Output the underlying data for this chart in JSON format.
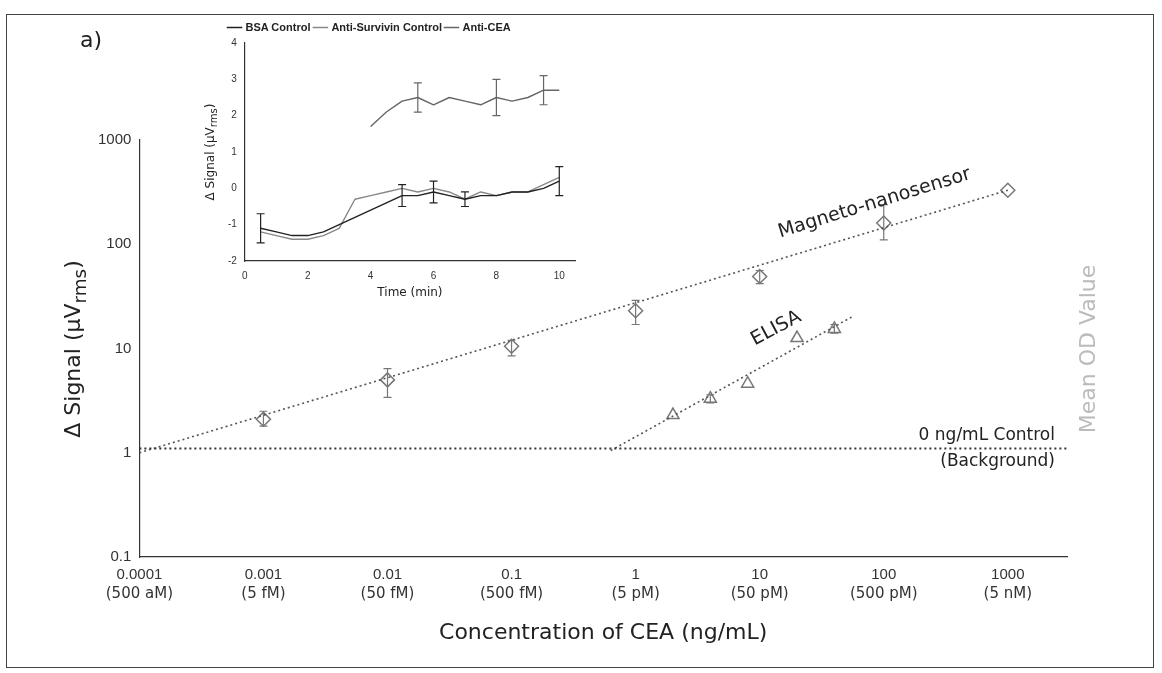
{
  "chart_data": [
    {
      "type": "scatter",
      "xlabel": "Concentration of CEA (ng/mL)",
      "ylabel": "Δ Signal (μV$_{rms}$)",
      "y2label": "Mean OD Value",
      "log": "xy",
      "xlim": [
        0.0001,
        3000
      ],
      "ylim": [
        0.1,
        1000
      ],
      "xticks": [
        0.0001,
        0.001,
        0.01,
        0.1,
        1,
        10,
        100,
        1000
      ],
      "yticks": [
        0.1,
        1,
        10,
        100,
        1000
      ],
      "series": [
        {
          "type": "line",
          "color": "#555555",
          "marker": "none",
          "line_style": "dotted",
          "x": [
            0.0001,
            1000
          ],
          "values": [
            1,
            330
          ]
        },
        {
          "type": "line",
          "color": "#555555",
          "marker": "none",
          "line_style": "dotted",
          "x": [
            0.63,
            55
          ],
          "values": [
            1.05,
            20
          ]
        },
        {
          "type": "scatter",
          "name": "Magneto-nanosensor",
          "color": "#777777",
          "marker": "diamond",
          "x": [
            0.001,
            0.01,
            0.1,
            1,
            10,
            100,
            1000
          ],
          "values": [
            2.1,
            5.0,
            10.5,
            23,
            49,
            160,
            330
          ],
          "errors": [
            [
              1.8,
              2.5
            ],
            [
              3.4,
              6.4
            ],
            [
              8.5,
              12
            ],
            [
              17,
              29
            ],
            [
              42,
              56
            ],
            [
              110,
              240
            ],
            null
          ]
        },
        {
          "type": "scatter",
          "name": "ELISA",
          "color": "#777777",
          "marker": "triangle",
          "x": [
            2,
            4,
            8,
            20,
            40
          ],
          "values": [
            2.3,
            3.3,
            4.6,
            12.6,
            15.4
          ],
          "errors": [
            null,
            [
              3.0,
              3.6
            ],
            null,
            null,
            [
              14,
              17
            ]
          ]
        }
      ],
      "ref_lines": [
        {
          "axis": "y",
          "value": 1.1,
          "label": "0 ng/mL Control (Background)",
          "color": "#333333",
          "line_style": "dotted"
        }
      ],
      "annotations": [
        "a)",
        "(500 aM)",
        "(5 fM)",
        "(50 fM)",
        "(500 fM)",
        "(5 pM)",
        "(50 pM)",
        "(500 pM)",
        "(5 nM)"
      ],
      "legend": false,
      "grid": false
    },
    {
      "type": "line",
      "xlabel": "Time (min)",
      "ylabel": "Δ Signal (μV$_{rms}$)",
      "xlim": [
        0,
        10.5
      ],
      "ylim": [
        -2,
        4
      ],
      "xticks": [
        0,
        2,
        4,
        6,
        8,
        10
      ],
      "yticks": [
        -2,
        -1,
        0,
        1,
        2,
        3,
        4
      ],
      "legend": "top left",
      "grid": false,
      "series": [
        {
          "name": "BSA Control",
          "color": "#222222",
          "x": [
            0.5,
            1,
            1.5,
            2,
            2.5,
            3,
            3.5,
            4,
            4.5,
            5,
            5.5,
            6,
            6.5,
            7,
            7.5,
            8,
            8.5,
            9,
            9.5,
            10
          ],
          "values": [
            -1.1,
            -1.2,
            -1.3,
            -1.3,
            -1.2,
            -1.0,
            -0.8,
            -0.6,
            -0.4,
            -0.2,
            -0.2,
            -0.1,
            -0.2,
            -0.3,
            -0.2,
            -0.2,
            -0.1,
            -0.1,
            0.0,
            0.2
          ],
          "errors": [
            [
              -1.5,
              -0.7
            ],
            null,
            null,
            null,
            null,
            null,
            null,
            null,
            null,
            [
              -0.5,
              0.1
            ],
            null,
            [
              -0.4,
              0.2
            ],
            null,
            [
              -0.5,
              -0.1
            ],
            null,
            null,
            null,
            null,
            null,
            [
              -0.2,
              0.6
            ]
          ]
        },
        {
          "name": "Anti-Survivin Control",
          "color": "#888888",
          "x": [
            0.5,
            1,
            1.5,
            2,
            2.5,
            3,
            3.5,
            4,
            4.5,
            5,
            5.5,
            6,
            6.5,
            7,
            7.5,
            8,
            8.5,
            9,
            9.5,
            10
          ],
          "values": [
            -1.2,
            -1.3,
            -1.4,
            -1.4,
            -1.3,
            -1.1,
            -0.3,
            -0.2,
            -0.1,
            0.0,
            -0.1,
            0.0,
            -0.1,
            -0.3,
            -0.1,
            -0.2,
            -0.1,
            -0.1,
            0.1,
            0.3
          ]
        },
        {
          "name": "Anti-CEA",
          "color": "#666666",
          "x": [
            4,
            4.5,
            5,
            5.5,
            6,
            6.5,
            7,
            7.5,
            8,
            8.5,
            9,
            9.5,
            10
          ],
          "values": [
            1.7,
            2.1,
            2.4,
            2.5,
            2.3,
            2.5,
            2.4,
            2.3,
            2.5,
            2.4,
            2.5,
            2.7,
            2.7
          ],
          "errors": [
            null,
            null,
            null,
            [
              2.1,
              2.9
            ],
            null,
            null,
            null,
            null,
            [
              2.0,
              3.0
            ],
            null,
            null,
            [
              2.3,
              3.1
            ],
            null
          ]
        }
      ]
    }
  ]
}
